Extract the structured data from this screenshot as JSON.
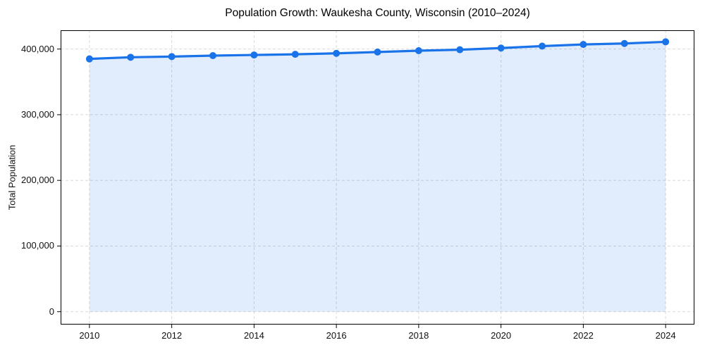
{
  "chart_data": {
    "type": "line",
    "title": "Population Growth: Waukesha County, Wisconsin (2010–2024)",
    "xlabel": "",
    "ylabel": "Total Population",
    "x": [
      2010,
      2011,
      2012,
      2013,
      2014,
      2015,
      2016,
      2017,
      2018,
      2019,
      2020,
      2021,
      2022,
      2023,
      2024
    ],
    "series": [
      {
        "name": "Total Population",
        "values": [
          385000,
          387500,
          388500,
          390000,
          391000,
          392000,
          393500,
          395500,
          397500,
          399000,
          401500,
          404500,
          407000,
          408500,
          411000
        ]
      }
    ],
    "xlim": [
      2009.3,
      2024.7
    ],
    "ylim": [
      -19600,
      428600
    ],
    "xticks": {
      "values": [
        2010,
        2012,
        2014,
        2016,
        2018,
        2020,
        2022,
        2024
      ],
      "labels": [
        "2010",
        "2012",
        "2014",
        "2016",
        "2018",
        "2020",
        "2022",
        "2024"
      ]
    },
    "yticks": {
      "values": [
        0,
        100000,
        200000,
        300000,
        400000
      ],
      "labels": [
        "0",
        "100,000",
        "200,000",
        "300,000",
        "400,000"
      ]
    },
    "grid": true,
    "grid_style": "dashed",
    "legend": "none",
    "marker": "circle",
    "area_fill": true,
    "area_baseline": 0,
    "colors": {
      "line": "#1a73e8",
      "marker": "#1a73e8",
      "fill": "#1a73e8",
      "fill_opacity": 0.13,
      "grid": "#d9d9d9",
      "axis": "#000000",
      "tick_text": "#111111",
      "title_text": "#000000"
    }
  }
}
